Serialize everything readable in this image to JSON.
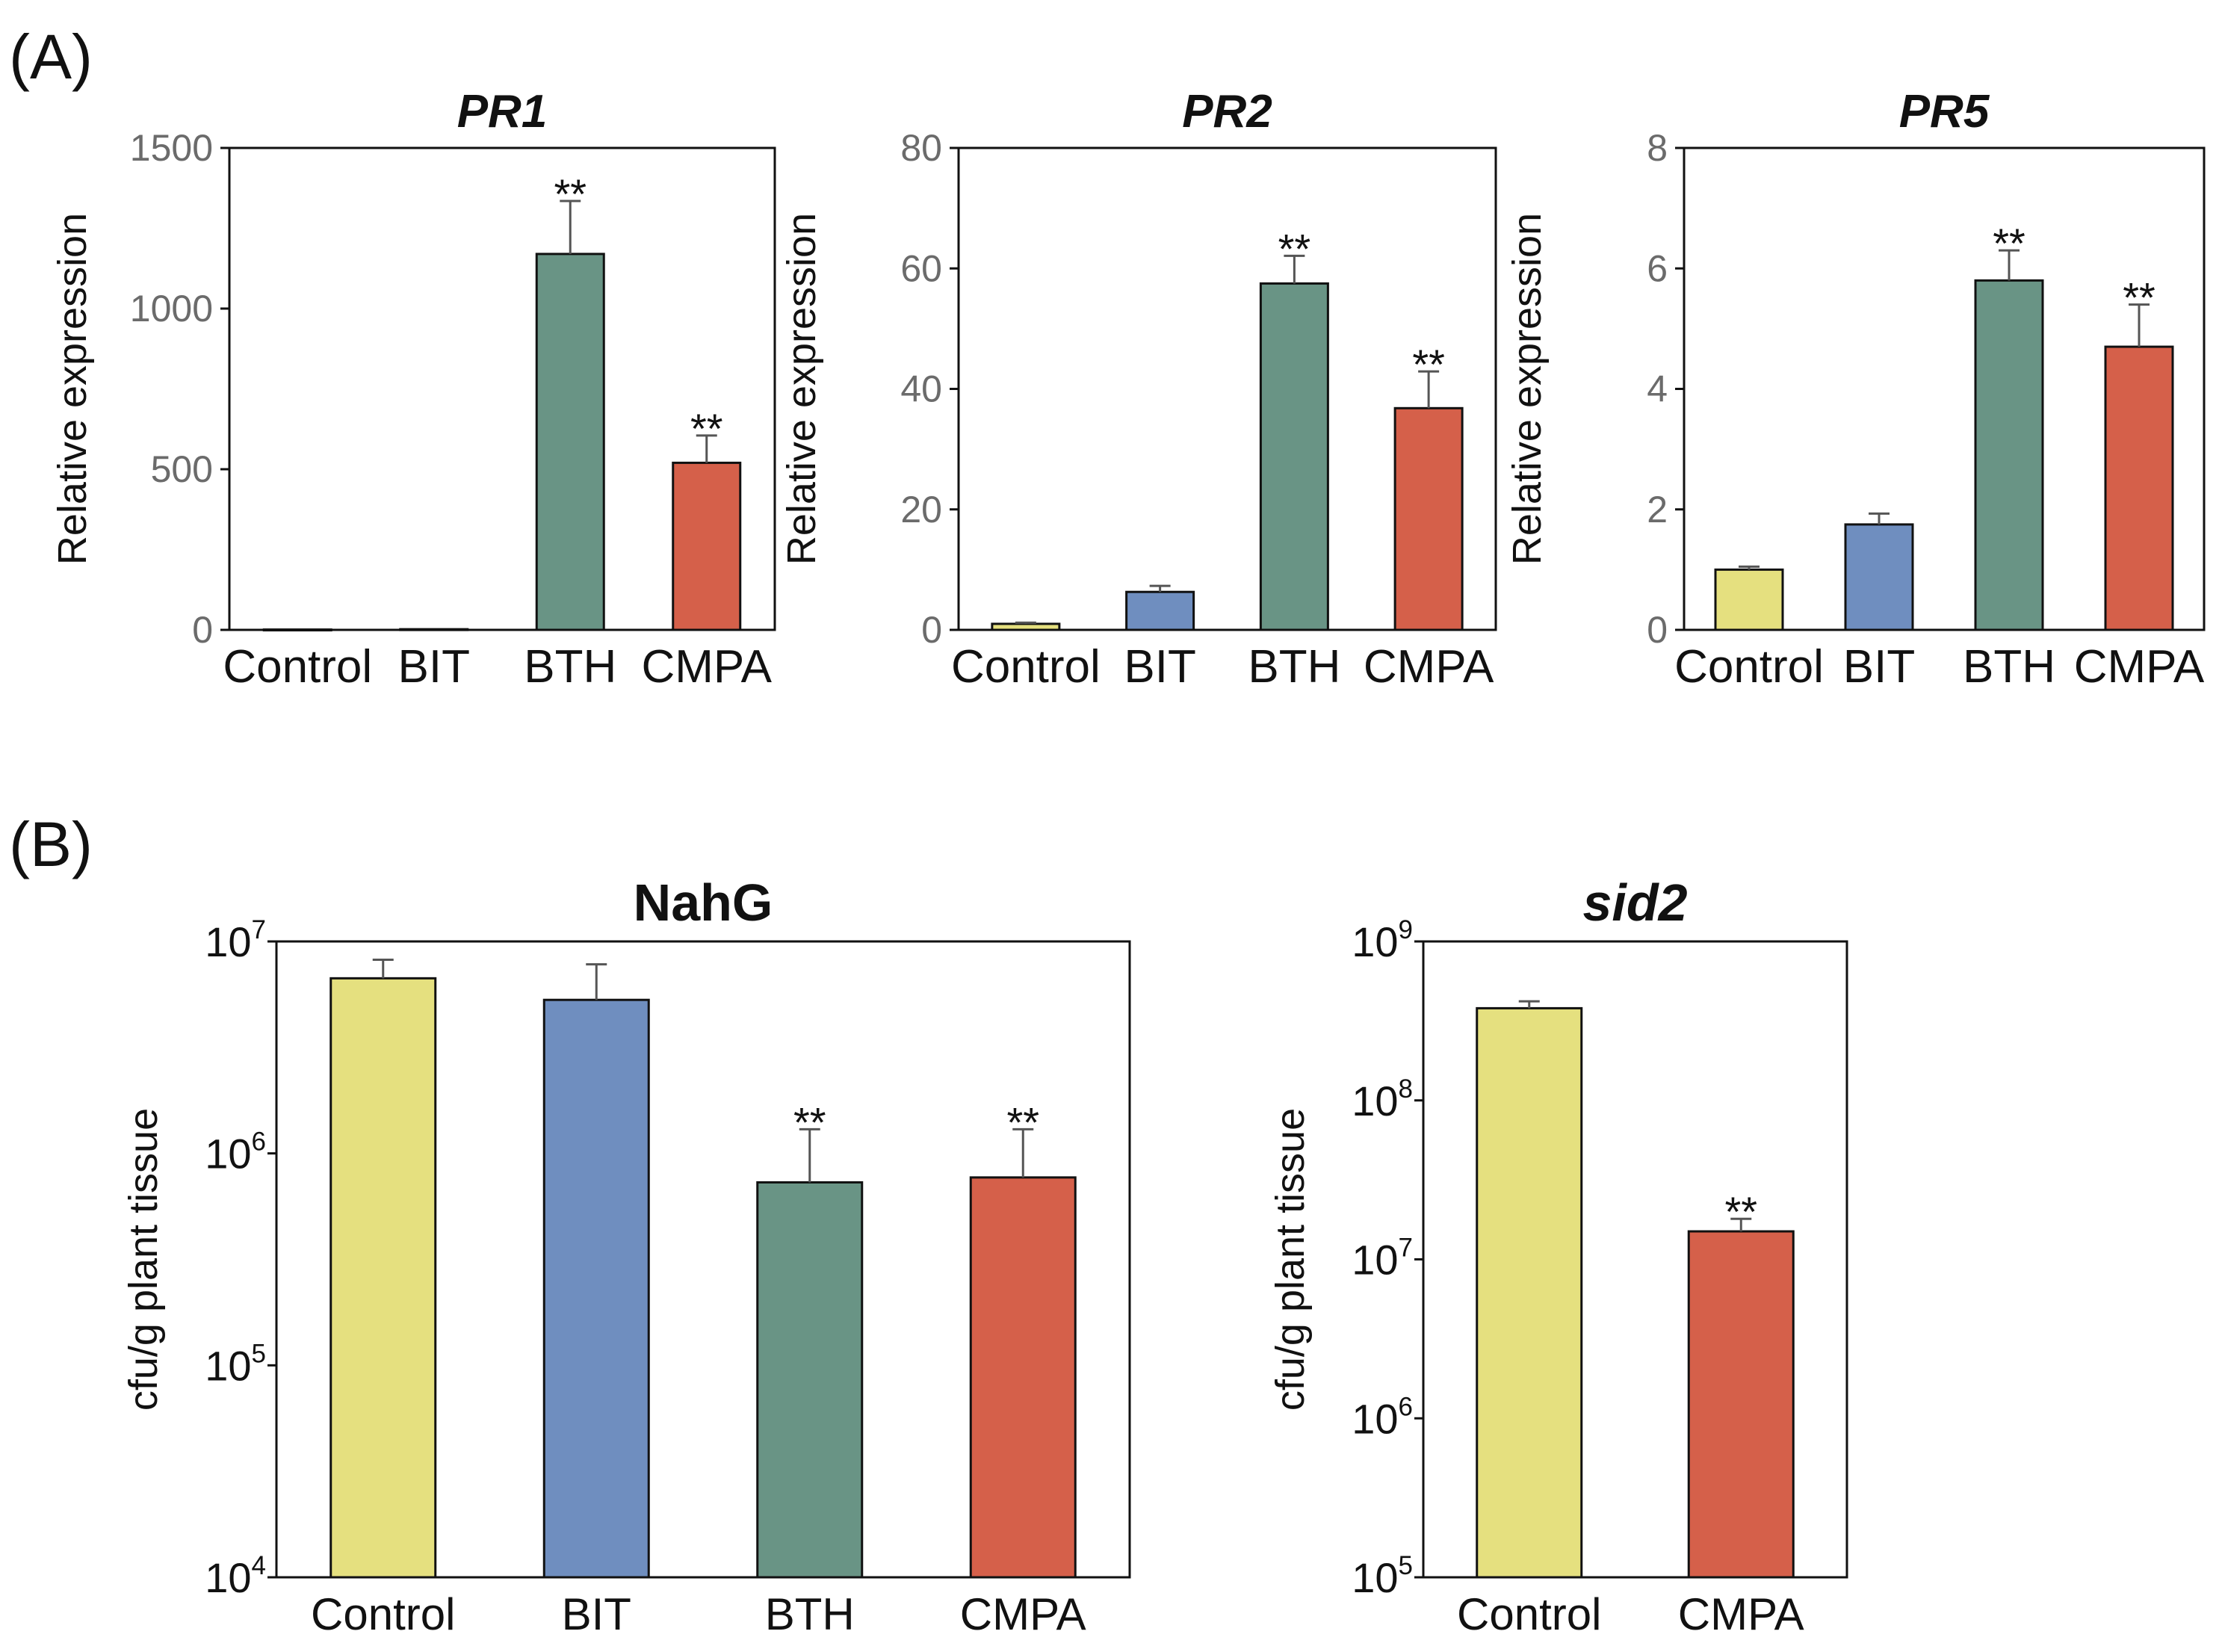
{
  "panels": {
    "a": "(A)",
    "b": "(B)"
  },
  "colors": {
    "Control": "#e5e07f",
    "BIT": "#6f8ebf",
    "BTH": "#699485",
    "CMPA": "#d5604a",
    "axis": "#111111",
    "tick_y_linear": "#6b6b6b",
    "tick_y_log": "#111111"
  },
  "chart_data": [
    {
      "id": "pr1",
      "type": "bar",
      "title": "PR1",
      "title_italic": true,
      "scale": "linear",
      "ylabel": "Relative expression",
      "ylim": [
        0,
        1500
      ],
      "yticks": [
        0,
        500,
        1000,
        1500
      ],
      "ytick_labels": [
        "0",
        "500",
        "1000",
        "1500"
      ],
      "categories": [
        "Control",
        "BIT",
        "BTH",
        "CMPA"
      ],
      "values": [
        1,
        2,
        1170,
        520
      ],
      "errors": [
        0,
        0,
        165,
        85
      ],
      "annotations": [
        "",
        "",
        "**",
        "**"
      ]
    },
    {
      "id": "pr2",
      "type": "bar",
      "title": "PR2",
      "title_italic": true,
      "scale": "linear",
      "ylabel": "Relative expression",
      "ylim": [
        0,
        80
      ],
      "yticks": [
        0,
        20,
        40,
        60,
        80
      ],
      "ytick_labels": [
        "0",
        "20",
        "40",
        "60",
        "80"
      ],
      "categories": [
        "Control",
        "BIT",
        "BTH",
        "CMPA"
      ],
      "values": [
        1,
        6.3,
        57.5,
        36.8
      ],
      "errors": [
        0.2,
        1.0,
        4.6,
        6.1
      ],
      "annotations": [
        "",
        "",
        "**",
        "**"
      ]
    },
    {
      "id": "pr5",
      "type": "bar",
      "title": "PR5",
      "title_italic": true,
      "scale": "linear",
      "ylabel": "Relative expression",
      "ylim": [
        0,
        8
      ],
      "yticks": [
        0,
        2,
        4,
        6,
        8
      ],
      "ytick_labels": [
        "0",
        "2",
        "4",
        "6",
        "8"
      ],
      "categories": [
        "Control",
        "BIT",
        "BTH",
        "CMPA"
      ],
      "values": [
        1.0,
        1.75,
        5.8,
        4.7
      ],
      "errors": [
        0.05,
        0.18,
        0.5,
        0.7
      ],
      "annotations": [
        "",
        "",
        "**",
        "**"
      ]
    },
    {
      "id": "nahg",
      "type": "bar",
      "title": "NahG",
      "title_italic": false,
      "scale": "log",
      "ylabel": "cfu/g plant tissue",
      "ylim": [
        10000,
        10000000
      ],
      "ytick_exponents": [
        4,
        5,
        6,
        7
      ],
      "ytick_base": "10",
      "categories": [
        "Control",
        "BIT",
        "BTH",
        "CMPA"
      ],
      "values": [
        6700000,
        5300000,
        730000,
        770000
      ],
      "error_tops": [
        8200000,
        7800000,
        1300000,
        1300000
      ],
      "annotations": [
        "",
        "",
        "**",
        "**"
      ]
    },
    {
      "id": "sid2",
      "type": "bar",
      "title": "sid2",
      "title_italic": true,
      "scale": "log",
      "ylabel": "cfu/g plant tissue",
      "ylim": [
        100000,
        1000000000
      ],
      "ytick_exponents": [
        5,
        6,
        7,
        8,
        9
      ],
      "ytick_base": "10",
      "categories": [
        "Control",
        "CMPA"
      ],
      "values": [
        380000000,
        15000000
      ],
      "error_tops": [
        420000000,
        18000000
      ],
      "annotations": [
        "",
        "**"
      ]
    }
  ]
}
